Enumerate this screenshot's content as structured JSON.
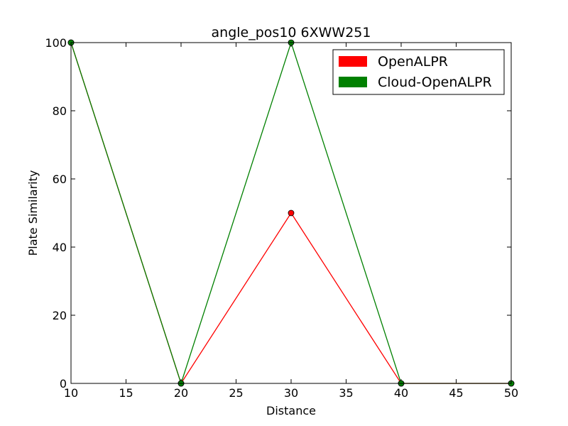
{
  "chart_data": {
    "type": "line",
    "title": "angle_pos10 6XWW251",
    "xlabel": "Distance",
    "ylabel": "Plate Similarity",
    "xlim": [
      10,
      50
    ],
    "ylim": [
      0,
      100
    ],
    "x_ticks": [
      10,
      15,
      20,
      25,
      30,
      35,
      40,
      45,
      50
    ],
    "y_ticks": [
      0,
      20,
      40,
      60,
      80,
      100
    ],
    "grid": false,
    "legend_position": "top-right",
    "series": [
      {
        "name": "OpenALPR",
        "color": "#ff0000",
        "x": [
          10,
          20,
          30,
          40,
          50
        ],
        "y": [
          100,
          0,
          50,
          0,
          0
        ]
      },
      {
        "name": "Cloud-OpenALPR",
        "color": "#008000",
        "x": [
          10,
          20,
          30,
          40,
          50
        ],
        "y": [
          100,
          0,
          100,
          0,
          0
        ]
      }
    ]
  }
}
